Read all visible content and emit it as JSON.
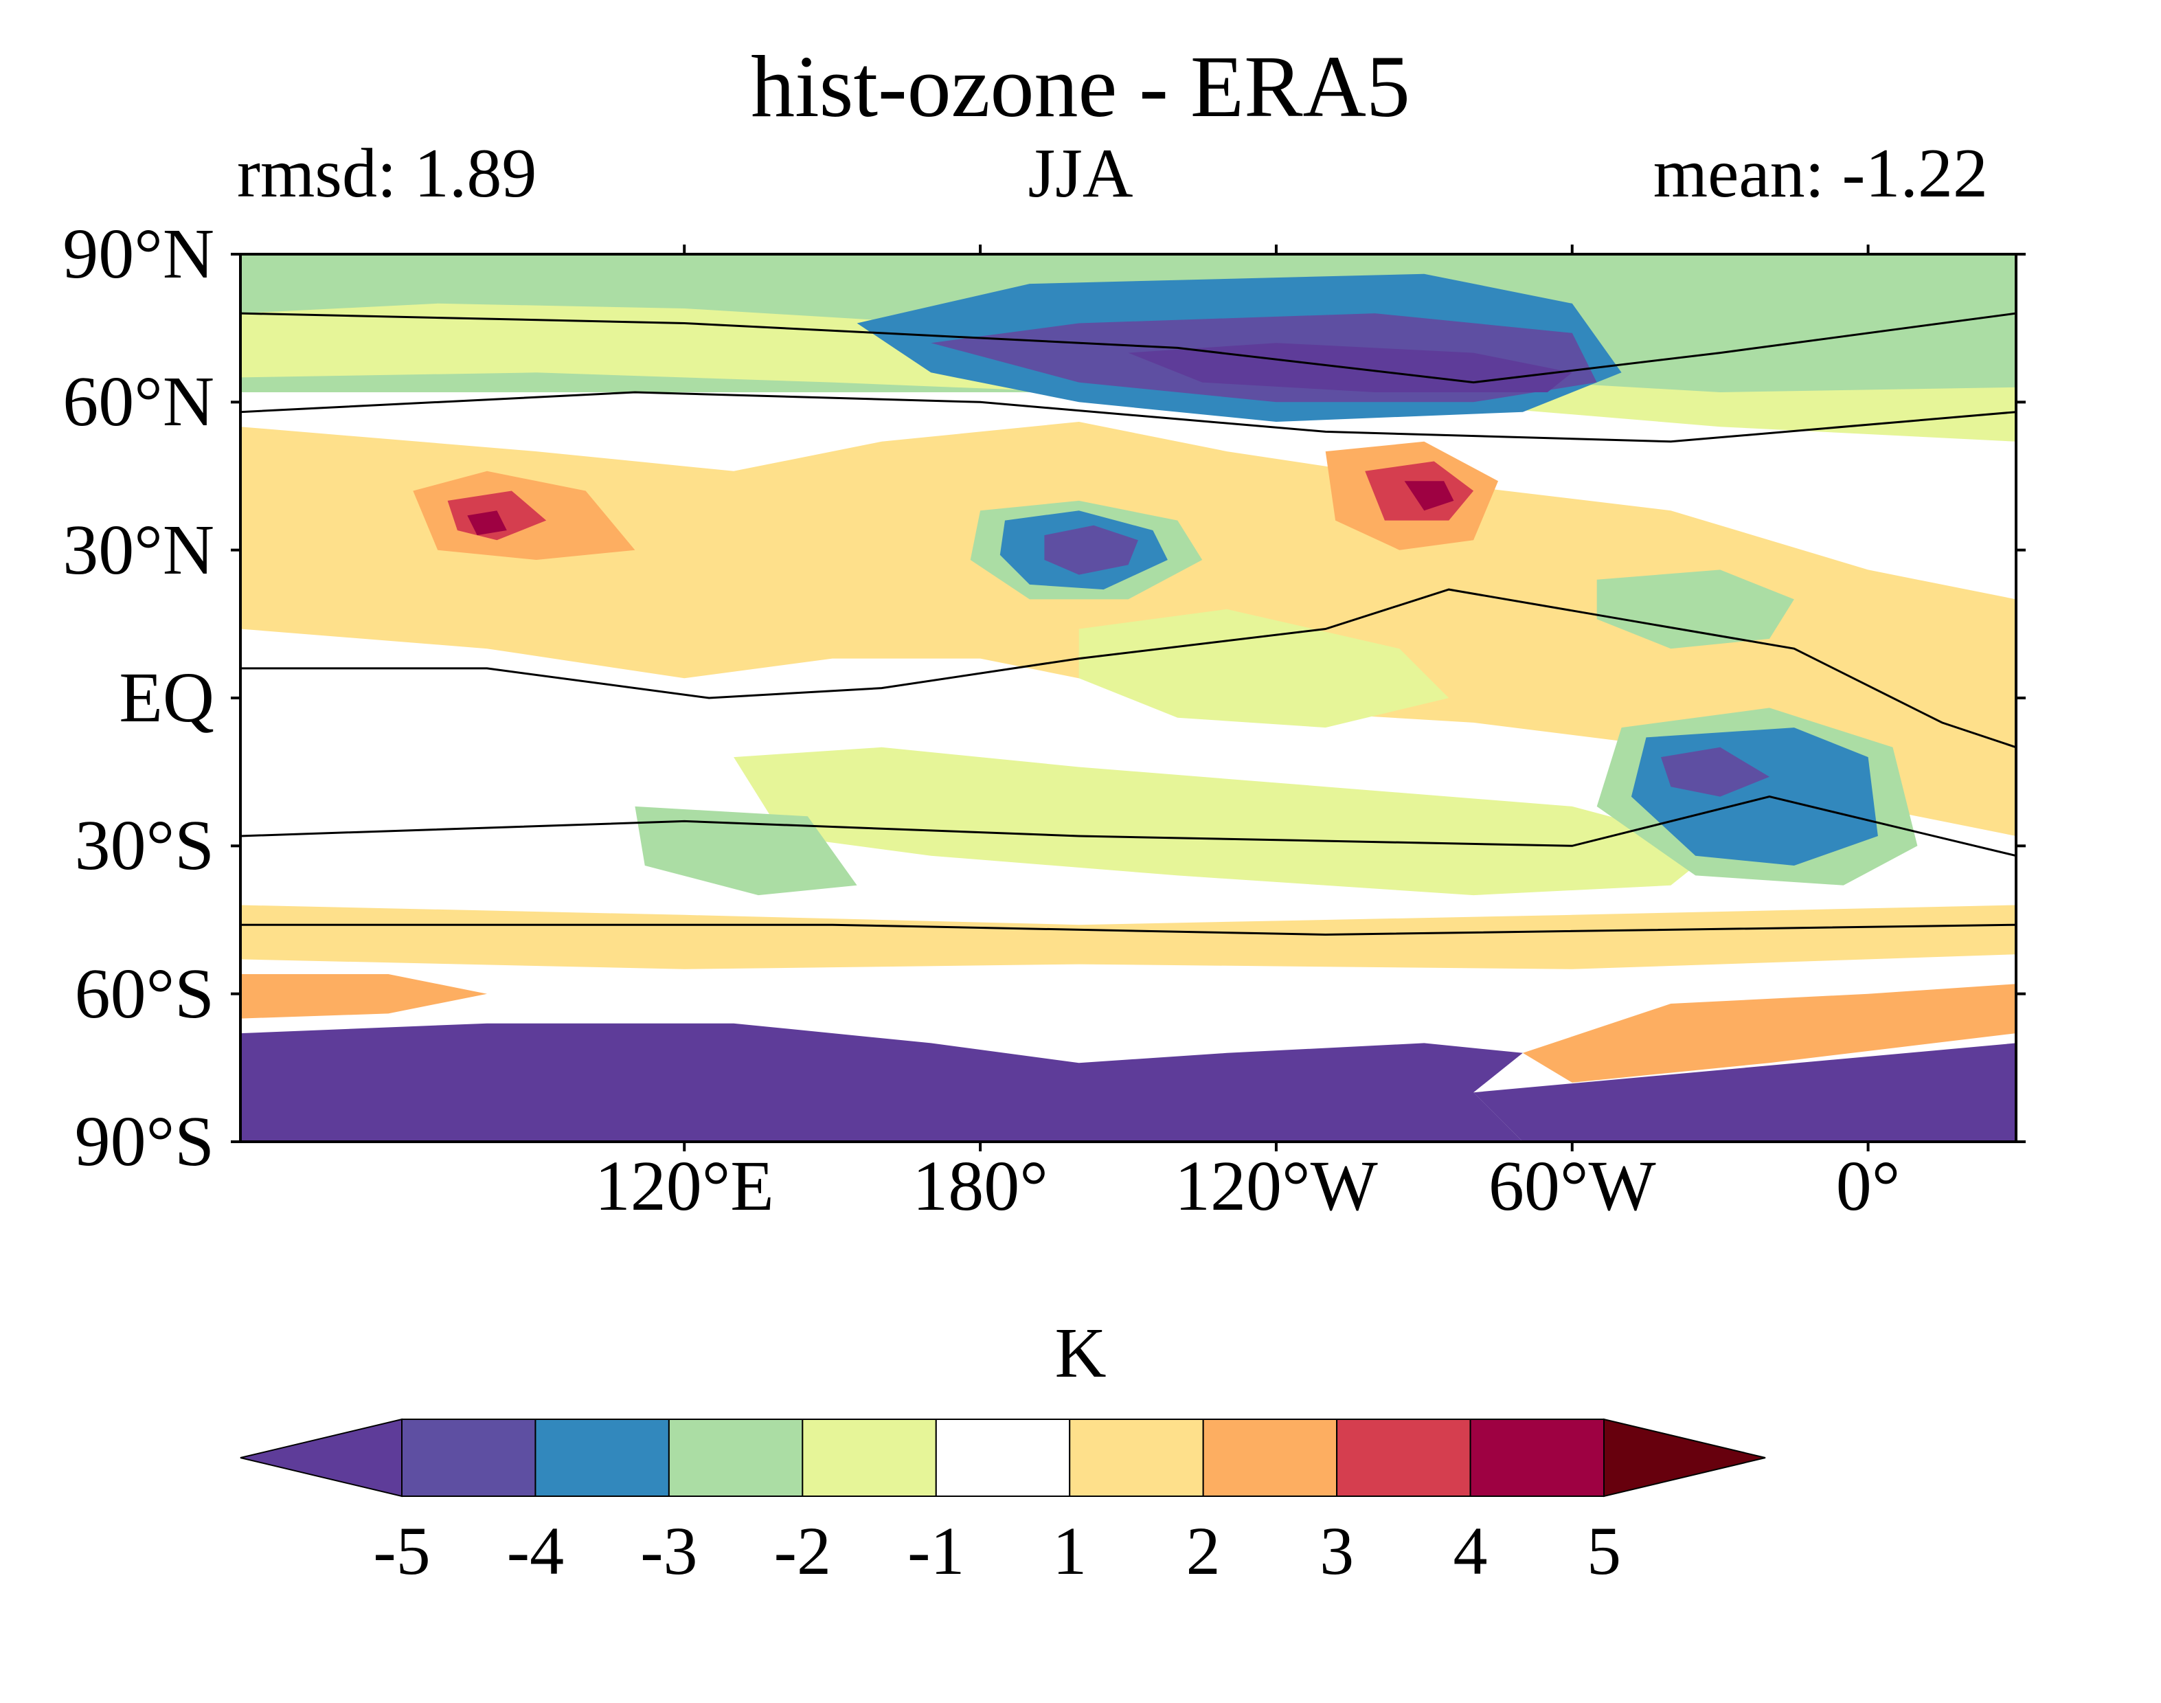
{
  "figure": {
    "title": "hist-ozone - ERA5",
    "left_label": "rmsd: 1.89",
    "center_label": "JJA",
    "right_label": "mean: -1.22"
  },
  "map": {
    "projection": "PlateCarree, central longitude 150°E",
    "lon_range": [
      30,
      390
    ],
    "lat_range": [
      -90,
      90
    ],
    "y_ticks": [
      {
        "lat": 90,
        "label": "90°N"
      },
      {
        "lat": 60,
        "label": "60°N"
      },
      {
        "lat": 30,
        "label": "30°N"
      },
      {
        "lat": 0,
        "label": "EQ"
      },
      {
        "lat": -30,
        "label": "30°S"
      },
      {
        "lat": -60,
        "label": "60°S"
      },
      {
        "lat": -90,
        "label": "90°S"
      }
    ],
    "x_ticks": [
      {
        "lon": 120,
        "label": "120°E"
      },
      {
        "lon": 180,
        "label": "180°"
      },
      {
        "lon": 240,
        "label": "120°W"
      },
      {
        "lon": 300,
        "label": "60°W"
      },
      {
        "lon": 360,
        "label": "0°"
      }
    ],
    "fill_regions": [
      {
        "level": "-2",
        "points": [
          [
            30,
            90
          ],
          [
            390,
            90
          ],
          [
            390,
            62
          ],
          [
            30,
            62
          ]
        ]
      },
      {
        "level": "-1",
        "points": [
          [
            30,
            78
          ],
          [
            70,
            80
          ],
          [
            120,
            79
          ],
          [
            170,
            76
          ],
          [
            210,
            72
          ],
          [
            260,
            66
          ],
          [
            330,
            62
          ],
          [
            390,
            63
          ],
          [
            390,
            52
          ],
          [
            330,
            55
          ],
          [
            270,
            60
          ],
          [
            200,
            62
          ],
          [
            150,
            64
          ],
          [
            90,
            66
          ],
          [
            30,
            65
          ]
        ]
      },
      {
        "level": "1",
        "points": [
          [
            30,
            55
          ],
          [
            90,
            50
          ],
          [
            130,
            46
          ],
          [
            160,
            52
          ],
          [
            200,
            56
          ],
          [
            230,
            50
          ],
          [
            270,
            44
          ],
          [
            320,
            38
          ],
          [
            360,
            26
          ],
          [
            390,
            20
          ],
          [
            390,
            -28
          ],
          [
            360,
            -22
          ],
          [
            320,
            -10
          ],
          [
            280,
            -5
          ],
          [
            230,
            -2
          ],
          [
            180,
            8
          ],
          [
            150,
            8
          ],
          [
            120,
            4
          ],
          [
            80,
            10
          ],
          [
            30,
            14
          ]
        ]
      },
      {
        "level": "1",
        "points": [
          [
            30,
            -42
          ],
          [
            120,
            -44
          ],
          [
            200,
            -46
          ],
          [
            300,
            -44
          ],
          [
            390,
            -42
          ],
          [
            390,
            -52
          ],
          [
            300,
            -55
          ],
          [
            200,
            -54
          ],
          [
            120,
            -55
          ],
          [
            30,
            -53
          ]
        ]
      },
      {
        "level": "-1",
        "points": [
          [
            130,
            -12
          ],
          [
            160,
            -10
          ],
          [
            200,
            -14
          ],
          [
            250,
            -18
          ],
          [
            300,
            -22
          ],
          [
            330,
            -30
          ],
          [
            320,
            -38
          ],
          [
            280,
            -40
          ],
          [
            220,
            -36
          ],
          [
            170,
            -32
          ],
          [
            140,
            -28
          ]
        ]
      },
      {
        "level": "-1",
        "points": [
          [
            200,
            14
          ],
          [
            230,
            18
          ],
          [
            265,
            10
          ],
          [
            275,
            0
          ],
          [
            250,
            -6
          ],
          [
            220,
            -4
          ],
          [
            200,
            4
          ]
        ]
      },
      {
        "level": "-2",
        "points": [
          [
            180,
            38
          ],
          [
            200,
            40
          ],
          [
            220,
            36
          ],
          [
            225,
            28
          ],
          [
            210,
            20
          ],
          [
            190,
            20
          ],
          [
            178,
            28
          ]
        ]
      },
      {
        "level": "-3",
        "points": [
          [
            185,
            36
          ],
          [
            200,
            38
          ],
          [
            215,
            34
          ],
          [
            218,
            28
          ],
          [
            205,
            22
          ],
          [
            190,
            23
          ],
          [
            184,
            29
          ]
        ]
      },
      {
        "level": "-4",
        "points": [
          [
            193,
            33
          ],
          [
            203,
            35
          ],
          [
            212,
            32
          ],
          [
            210,
            27
          ],
          [
            200,
            25
          ],
          [
            193,
            28
          ]
        ]
      },
      {
        "level": "-3",
        "points": [
          [
            155,
            76
          ],
          [
            190,
            84
          ],
          [
            270,
            86
          ],
          [
            300,
            80
          ],
          [
            310,
            66
          ],
          [
            290,
            58
          ],
          [
            240,
            56
          ],
          [
            200,
            60
          ],
          [
            170,
            66
          ]
        ]
      },
      {
        "level": "-4",
        "points": [
          [
            170,
            72
          ],
          [
            200,
            76
          ],
          [
            260,
            78
          ],
          [
            300,
            74
          ],
          [
            305,
            64
          ],
          [
            280,
            60
          ],
          [
            240,
            60
          ],
          [
            200,
            64
          ]
        ]
      },
      {
        "level": "-5",
        "points": [
          [
            210,
            70
          ],
          [
            240,
            72
          ],
          [
            280,
            70
          ],
          [
            300,
            66
          ],
          [
            295,
            62
          ],
          [
            260,
            62
          ],
          [
            225,
            64
          ]
        ]
      },
      {
        "level": "-2",
        "points": [
          [
            305,
            24
          ],
          [
            330,
            26
          ],
          [
            345,
            20
          ],
          [
            340,
            12
          ],
          [
            320,
            10
          ],
          [
            305,
            16
          ]
        ]
      },
      {
        "level": "-2",
        "points": [
          [
            310,
            -6
          ],
          [
            340,
            -2
          ],
          [
            365,
            -10
          ],
          [
            370,
            -30
          ],
          [
            355,
            -38
          ],
          [
            325,
            -36
          ],
          [
            305,
            -22
          ]
        ]
      },
      {
        "level": "-3",
        "points": [
          [
            315,
            -8
          ],
          [
            345,
            -6
          ],
          [
            360,
            -12
          ],
          [
            362,
            -28
          ],
          [
            345,
            -34
          ],
          [
            325,
            -32
          ],
          [
            312,
            -20
          ]
        ]
      },
      {
        "level": "-4",
        "points": [
          [
            318,
            -12
          ],
          [
            330,
            -10
          ],
          [
            340,
            -16
          ],
          [
            330,
            -20
          ],
          [
            320,
            -18
          ]
        ]
      },
      {
        "level": "-2",
        "points": [
          [
            110,
            -22
          ],
          [
            145,
            -24
          ],
          [
            155,
            -38
          ],
          [
            135,
            -40
          ],
          [
            112,
            -34
          ]
        ]
      },
      {
        "level": "2",
        "points": [
          [
            250,
            50
          ],
          [
            270,
            52
          ],
          [
            285,
            44
          ],
          [
            280,
            32
          ],
          [
            265,
            30
          ],
          [
            252,
            36
          ]
        ]
      },
      {
        "level": "3",
        "points": [
          [
            258,
            46
          ],
          [
            272,
            48
          ],
          [
            280,
            42
          ],
          [
            275,
            36
          ],
          [
            262,
            36
          ]
        ]
      },
      {
        "level": "4",
        "points": [
          [
            266,
            44
          ],
          [
            274,
            44
          ],
          [
            276,
            40
          ],
          [
            270,
            38
          ]
        ]
      },
      {
        "level": "2",
        "points": [
          [
            65,
            42
          ],
          [
            80,
            46
          ],
          [
            100,
            42
          ],
          [
            110,
            30
          ],
          [
            90,
            28
          ],
          [
            70,
            30
          ]
        ]
      },
      {
        "level": "3",
        "points": [
          [
            72,
            40
          ],
          [
            85,
            42
          ],
          [
            92,
            36
          ],
          [
            82,
            32
          ],
          [
            74,
            34
          ]
        ]
      },
      {
        "level": "4",
        "points": [
          [
            76,
            37
          ],
          [
            82,
            38
          ],
          [
            84,
            34
          ],
          [
            78,
            33
          ]
        ]
      },
      {
        "level": "-5",
        "points": [
          [
            30,
            -68
          ],
          [
            80,
            -66
          ],
          [
            130,
            -66
          ],
          [
            170,
            -70
          ],
          [
            200,
            -74
          ],
          [
            230,
            -72
          ],
          [
            270,
            -70
          ],
          [
            290,
            -72
          ],
          [
            280,
            -80
          ],
          [
            290,
            -90
          ],
          [
            30,
            -90
          ]
        ]
      },
      {
        "level": "-5",
        "points": [
          [
            280,
            -80
          ],
          [
            390,
            -70
          ],
          [
            390,
            -90
          ],
          [
            290,
            -90
          ]
        ]
      },
      {
        "level": "2",
        "points": [
          [
            290,
            -72
          ],
          [
            320,
            -62
          ],
          [
            360,
            -60
          ],
          [
            390,
            -58
          ],
          [
            390,
            -68
          ],
          [
            340,
            -74
          ],
          [
            300,
            -78
          ]
        ]
      },
      {
        "level": "2",
        "points": [
          [
            30,
            -56
          ],
          [
            60,
            -56
          ],
          [
            80,
            -60
          ],
          [
            60,
            -64
          ],
          [
            30,
            -65
          ]
        ]
      }
    ],
    "contour_lines": [
      [
        [
          30,
          78
        ],
        [
          120,
          76
        ],
        [
          220,
          71
        ],
        [
          280,
          64
        ],
        [
          330,
          70
        ],
        [
          390,
          78
        ]
      ],
      [
        [
          30,
          58
        ],
        [
          110,
          62
        ],
        [
          180,
          60
        ],
        [
          250,
          54
        ],
        [
          320,
          52
        ],
        [
          390,
          58
        ]
      ],
      [
        [
          30,
          6
        ],
        [
          80,
          6
        ],
        [
          125,
          0
        ],
        [
          160,
          2
        ],
        [
          200,
          8
        ],
        [
          250,
          14
        ],
        [
          275,
          22
        ],
        [
          310,
          16
        ],
        [
          345,
          10
        ],
        [
          375,
          -5
        ],
        [
          390,
          -10
        ]
      ],
      [
        [
          30,
          -28
        ],
        [
          120,
          -25
        ],
        [
          200,
          -28
        ],
        [
          300,
          -30
        ],
        [
          340,
          -20
        ],
        [
          390,
          -32
        ]
      ],
      [
        [
          30,
          -46
        ],
        [
          150,
          -46
        ],
        [
          250,
          -48
        ],
        [
          390,
          -46
        ]
      ]
    ]
  },
  "colorbar": {
    "unit": "K",
    "boundaries": [
      "-5",
      "-4",
      "-3",
      "-2",
      "-1",
      "1",
      "2",
      "3",
      "4",
      "5"
    ],
    "colors": [
      "#5e3c99",
      "#5e4fa2",
      "#3288bd",
      "#abdda4",
      "#e6f598",
      "#ffffff",
      "#fee08b",
      "#fdae61",
      "#d53e4f",
      "#9e0142",
      "#67000d"
    ],
    "level_colors": {
      "-5": "#5e3c99",
      "-4": "#5e4fa2",
      "-3": "#3288bd",
      "-2": "#abdda4",
      "-1": "#e6f598",
      "1": "#fee08b",
      "2": "#fdae61",
      "3": "#d53e4f",
      "4": "#9e0142"
    }
  }
}
